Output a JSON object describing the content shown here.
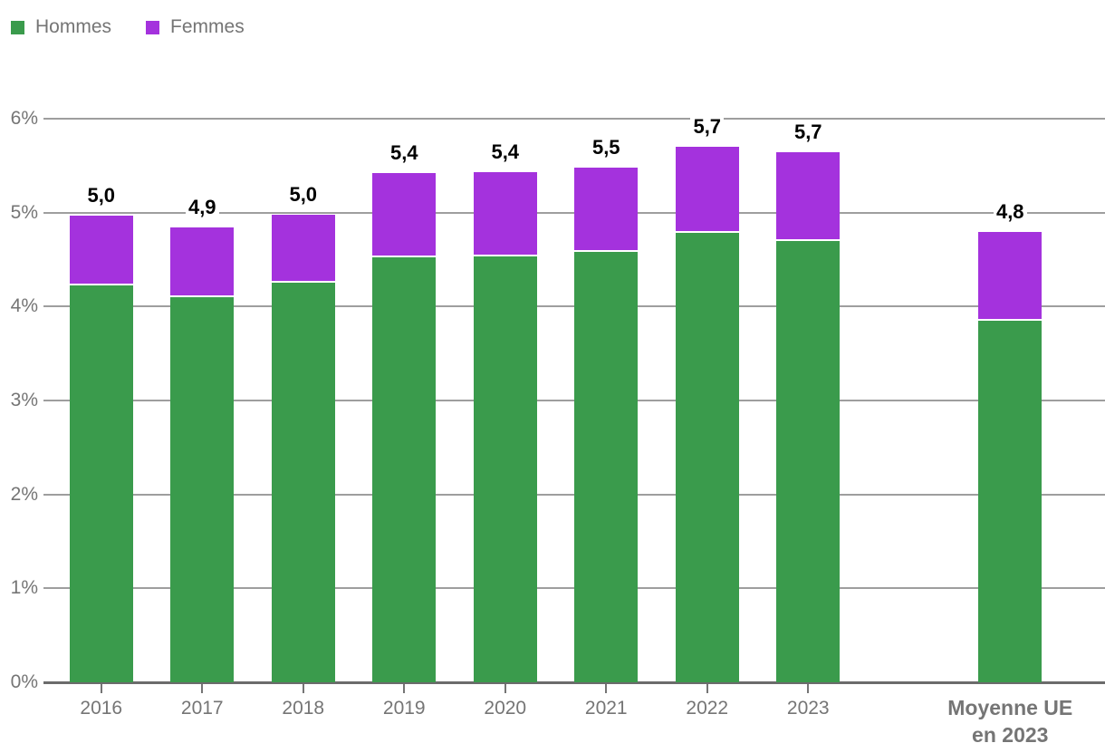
{
  "legend": {
    "items": [
      {
        "label": "Hommes",
        "color": "#3a9b4c"
      },
      {
        "label": "Femmes",
        "color": "#a432dd"
      }
    ]
  },
  "chart_data": {
    "type": "bar",
    "stacked": true,
    "title": "",
    "xlabel": "",
    "ylabel": "",
    "categories": [
      "2016",
      "2017",
      "2018",
      "2019",
      "2020",
      "2021",
      "2022",
      "2023",
      "",
      "Moyenne UE\nen 2023"
    ],
    "series": [
      {
        "name": "Hommes",
        "color": "#3a9b4c",
        "values": [
          4.22,
          4.1,
          4.25,
          4.52,
          4.53,
          4.58,
          4.78,
          4.7,
          null,
          3.85
        ]
      },
      {
        "name": "Femmes",
        "color": "#a432dd",
        "values": [
          0.75,
          0.74,
          0.73,
          0.9,
          0.9,
          0.9,
          0.92,
          0.94,
          null,
          0.94
        ]
      }
    ],
    "total_labels": [
      "5,0",
      "4,9",
      "5,0",
      "5,4",
      "5,4",
      "5,5",
      "5,7",
      "5,7",
      "",
      "4,8"
    ],
    "y_ticks": [
      "0%",
      "1%",
      "2%",
      "3%",
      "4%",
      "5%",
      "6%"
    ],
    "ylim": [
      0,
      6
    ],
    "grid": true,
    "legend_position": "top-left",
    "colors": {
      "gridline": "#9e9e9e",
      "axis_line": "#6b6b6b",
      "tick": "#757575",
      "axis_text": "#757575",
      "data_label": "#000000",
      "background": "#ffffff"
    }
  }
}
